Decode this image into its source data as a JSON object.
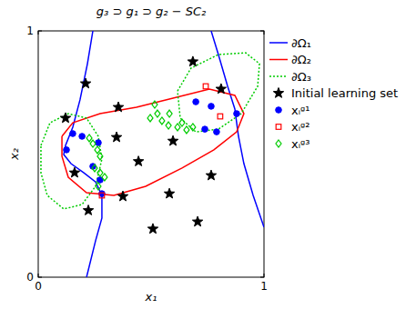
{
  "chart_data": {
    "type": "scatter",
    "title": "g₃ ⊃ g₁ ⊃ g₂ − SC₂",
    "x_label": "x₁",
    "y_label": "x₂",
    "xlim": [
      0,
      1
    ],
    "ylim": [
      0,
      1
    ],
    "xticks": [
      0,
      1
    ],
    "yticks": [
      0,
      1
    ],
    "grid": false,
    "legend": "right",
    "series": [
      {
        "name": "∂Ω₁",
        "type": "line",
        "color": "#0000ff",
        "line_style": "solid",
        "x": [
          0.242,
          0.218,
          0.185,
          0.153,
          0.121,
          0.113,
          0.145,
          0.202,
          0.254,
          0.282,
          0.282,
          0.254,
          0.214,
          null,
          0.766,
          0.798,
          0.839,
          0.871,
          0.879,
          0.887,
          0.911,
          0.952,
          1.0
        ],
        "values": [
          1.0,
          0.867,
          0.72,
          0.609,
          0.535,
          0.498,
          0.461,
          0.424,
          0.387,
          0.332,
          0.24,
          0.148,
          0.0,
          null,
          1.0,
          0.904,
          0.775,
          0.683,
          0.627,
          0.572,
          0.461,
          0.332,
          0.203
        ]
      },
      {
        "name": "∂Ω₂",
        "type": "line",
        "color": "#ff0000",
        "line_style": "solid",
        "x": [
          0.105,
          0.153,
          0.274,
          0.435,
          0.597,
          0.758,
          0.871,
          0.911,
          0.879,
          0.778,
          0.637,
          0.476,
          0.335,
          0.214,
          0.133,
          0.105,
          0.105
        ],
        "values": [
          0.572,
          0.627,
          0.664,
          0.69,
          0.727,
          0.764,
          0.738,
          0.664,
          0.59,
          0.517,
          0.443,
          0.369,
          0.332,
          0.343,
          0.406,
          0.491,
          0.572
        ]
      },
      {
        "name": "∂Ω₃",
        "type": "line",
        "color": "#00cc00",
        "line_style": "dotted",
        "x": [
          0.617,
          0.677,
          0.798,
          0.919,
          0.98,
          0.972,
          0.899,
          0.798,
          0.698,
          0.629,
          0.617,
          null,
          0.012,
          0.052,
          0.133,
          0.214,
          0.266,
          0.282,
          0.254,
          0.194,
          0.113,
          0.04,
          0.012,
          0.012
        ],
        "values": [
          0.756,
          0.849,
          0.904,
          0.911,
          0.867,
          0.775,
          0.664,
          0.601,
          0.59,
          0.646,
          0.756,
          null,
          0.535,
          0.627,
          0.664,
          0.646,
          0.572,
          0.48,
          0.369,
          0.295,
          0.277,
          0.332,
          0.424,
          0.535
        ]
      },
      {
        "name": "Initial learning set",
        "type": "scatter",
        "color": "#000000",
        "marker": "star",
        "x": [
          0.21,
          0.121,
          0.355,
          0.685,
          0.81,
          0.444,
          0.347,
          0.597,
          0.161,
          0.222,
          0.581,
          0.375,
          0.508,
          0.706,
          0.766
        ],
        "values": [
          0.786,
          0.646,
          0.69,
          0.875,
          0.764,
          0.47,
          0.568,
          0.553,
          0.424,
          0.271,
          0.339,
          0.328,
          0.196,
          0.225,
          0.413
        ]
      },
      {
        "name": "xᵢᵍ¹",
        "type": "scatter",
        "color": "#0000ff",
        "marker": "circle",
        "x": [
          0.125,
          0.153,
          0.194,
          0.266,
          0.242,
          0.274,
          0.282,
          0.698,
          0.766,
          0.879,
          0.79,
          0.738
        ],
        "values": [
          0.517,
          0.583,
          0.572,
          0.546,
          0.45,
          0.395,
          0.339,
          0.712,
          0.694,
          0.664,
          0.59,
          0.601
        ]
      },
      {
        "name": "xᵢᵍ²",
        "type": "scatter",
        "color": "#ff0000",
        "marker": "square",
        "x": [
          0.742,
          0.806,
          0.282
        ],
        "values": [
          0.775,
          0.653,
          0.332
        ]
      },
      {
        "name": "xᵢᵍ³",
        "type": "scatter",
        "color": "#00cc00",
        "marker": "diamond",
        "x": [
          0.226,
          0.242,
          0.262,
          0.274,
          0.25,
          0.274,
          0.294,
          0.266,
          0.516,
          0.528,
          0.548,
          0.577,
          0.617,
          0.657,
          0.685,
          0.496,
          0.581,
          0.637
        ],
        "values": [
          0.565,
          0.542,
          0.517,
          0.491,
          0.443,
          0.424,
          0.406,
          0.369,
          0.701,
          0.664,
          0.635,
          0.616,
          0.609,
          0.598,
          0.609,
          0.646,
          0.664,
          0.627
        ]
      }
    ]
  }
}
